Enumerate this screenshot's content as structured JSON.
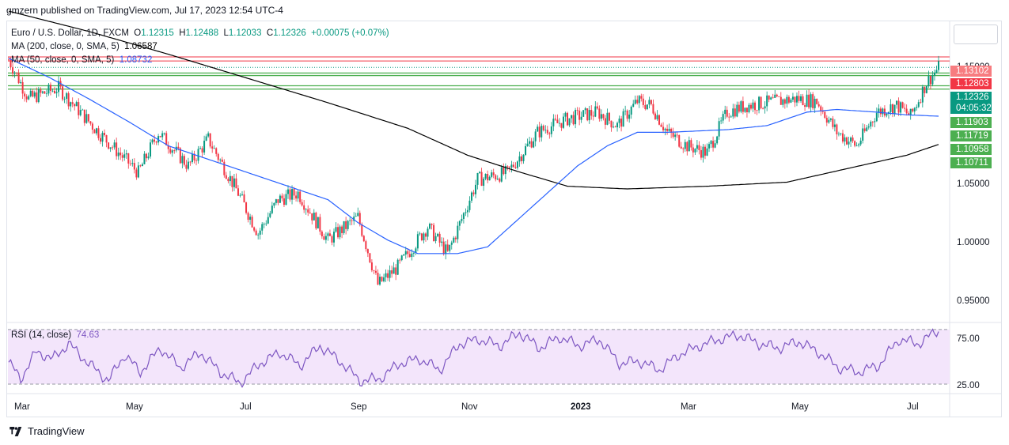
{
  "header": {
    "published": "gmzern published on TradingView.com, Jul 17, 2023 12:54 UTC-4"
  },
  "legend": {
    "symbol": "Euro / U.S. Dollar, 1D, FXCM",
    "o_label": "O",
    "o": "1.12315",
    "h_label": "H",
    "h": "1.12488",
    "l_label": "L",
    "l": "1.12033",
    "c_label": "C",
    "c": "1.12326",
    "change": "+0.00075 (+0.07%)",
    "ma200_label": "MA (200, close, 0, SMA, 5)",
    "ma200": "1.06587",
    "ma50_label": "MA (50, close, 0, SMA, 5)",
    "ma50": "1.08732"
  },
  "rsi": {
    "label": "RSI (14, close)",
    "value": "74.63"
  },
  "price_axis": {
    "ticks": [
      "1.15000",
      "1.05000",
      "1.00000",
      "0.95000"
    ],
    "boxes": [
      {
        "text": "1.13102",
        "color": "#f77c80"
      },
      {
        "text": "1.12803",
        "color": "#f23645"
      },
      {
        "text": "1.12326",
        "color": "#089981"
      },
      {
        "text": "04:05:32",
        "color": "#089981"
      },
      {
        "text": "1.11903",
        "color": "#4caf50"
      },
      {
        "text": "1.11719",
        "color": "#4caf50"
      },
      {
        "text": "1.10958",
        "color": "#4caf50"
      },
      {
        "text": "1.10711",
        "color": "#4caf50"
      }
    ]
  },
  "rsi_axis": {
    "ticks": [
      "75.00",
      "25.00"
    ]
  },
  "time_axis": [
    "Mar",
    "May",
    "Jul",
    "Sep",
    "Nov",
    "2023",
    "Mar",
    "May",
    "Jul"
  ],
  "footer": {
    "brand": "TradingView"
  },
  "colors": {
    "up": "#089981",
    "down": "#f23645",
    "ma50": "#2962ff",
    "ma200": "#000000",
    "rsi_line": "#7e57c2",
    "rsi_fill": "#f3e5fb",
    "resistance": "#f23645",
    "support": "#4caf50"
  },
  "chart_data": {
    "type": "candlestick",
    "price_range": [
      0.935,
      1.158
    ],
    "rsi_range": [
      17,
      80
    ],
    "resistance_levels": [
      1.13102,
      1.12803
    ],
    "support_levels": [
      1.11903,
      1.11719,
      1.10958,
      1.10711
    ],
    "close_waypoints": [
      [
        0,
        1.129
      ],
      [
        10,
        1.1
      ],
      [
        25,
        1.108
      ],
      [
        45,
        1.075
      ],
      [
        65,
        1.045
      ],
      [
        75,
        1.075
      ],
      [
        90,
        1.05
      ],
      [
        100,
        1.07
      ],
      [
        115,
        1.03
      ],
      [
        125,
        1.0
      ],
      [
        135,
        1.025
      ],
      [
        145,
        1.03
      ],
      [
        160,
        0.995
      ],
      [
        175,
        1.012
      ],
      [
        185,
        0.962
      ],
      [
        195,
        0.975
      ],
      [
        210,
        1.005
      ],
      [
        220,
        0.985
      ],
      [
        235,
        1.04
      ],
      [
        250,
        1.045
      ],
      [
        265,
        1.075
      ],
      [
        280,
        1.085
      ],
      [
        295,
        1.09
      ],
      [
        305,
        1.08
      ],
      [
        315,
        1.098
      ],
      [
        322,
        1.095
      ],
      [
        330,
        1.075
      ],
      [
        340,
        1.065
      ],
      [
        350,
        1.06
      ],
      [
        360,
        1.09
      ],
      [
        370,
        1.095
      ],
      [
        385,
        1.098
      ],
      [
        395,
        1.1
      ],
      [
        405,
        1.098
      ],
      [
        415,
        1.075
      ],
      [
        425,
        1.065
      ],
      [
        435,
        1.09
      ],
      [
        445,
        1.095
      ],
      [
        452,
        1.087
      ],
      [
        460,
        1.112
      ],
      [
        466,
        1.123
      ]
    ],
    "ma50_waypoints": [
      [
        0,
        1.13
      ],
      [
        20,
        1.116
      ],
      [
        40,
        1.1
      ],
      [
        60,
        1.083
      ],
      [
        80,
        1.065
      ],
      [
        100,
        1.055
      ],
      [
        120,
        1.045
      ],
      [
        140,
        1.035
      ],
      [
        160,
        1.025
      ],
      [
        175,
        1.008
      ],
      [
        190,
        0.995
      ],
      [
        205,
        0.985
      ],
      [
        225,
        0.985
      ],
      [
        240,
        0.99
      ],
      [
        255,
        1.01
      ],
      [
        270,
        1.03
      ],
      [
        285,
        1.05
      ],
      [
        300,
        1.065
      ],
      [
        315,
        1.075
      ],
      [
        330,
        1.075
      ],
      [
        345,
        1.076
      ],
      [
        360,
        1.077
      ],
      [
        380,
        1.08
      ],
      [
        400,
        1.09
      ],
      [
        415,
        1.092
      ],
      [
        435,
        1.09
      ],
      [
        450,
        1.088
      ],
      [
        466,
        1.087
      ]
    ],
    "ma200_waypoints": [
      [
        0,
        1.165
      ],
      [
        40,
        1.15
      ],
      [
        80,
        1.133
      ],
      [
        120,
        1.115
      ],
      [
        160,
        1.097
      ],
      [
        200,
        1.078
      ],
      [
        230,
        1.058
      ],
      [
        255,
        1.046
      ],
      [
        280,
        1.035
      ],
      [
        310,
        1.033
      ],
      [
        350,
        1.035
      ],
      [
        390,
        1.038
      ],
      [
        420,
        1.048
      ],
      [
        450,
        1.058
      ],
      [
        466,
        1.066
      ]
    ],
    "rsi_waypoints": [
      [
        0,
        45
      ],
      [
        6,
        30
      ],
      [
        14,
        55
      ],
      [
        22,
        48
      ],
      [
        30,
        62
      ],
      [
        40,
        44
      ],
      [
        50,
        28
      ],
      [
        58,
        52
      ],
      [
        66,
        36
      ],
      [
        76,
        58
      ],
      [
        86,
        40
      ],
      [
        96,
        54
      ],
      [
        106,
        36
      ],
      [
        116,
        26
      ],
      [
        126,
        44
      ],
      [
        136,
        54
      ],
      [
        146,
        42
      ],
      [
        156,
        60
      ],
      [
        166,
        46
      ],
      [
        176,
        28
      ],
      [
        186,
        30
      ],
      [
        196,
        44
      ],
      [
        206,
        48
      ],
      [
        216,
        38
      ],
      [
        226,
        62
      ],
      [
        236,
        66
      ],
      [
        246,
        60
      ],
      [
        256,
        72
      ],
      [
        266,
        58
      ],
      [
        276,
        68
      ],
      [
        286,
        60
      ],
      [
        296,
        66
      ],
      [
        306,
        44
      ],
      [
        316,
        46
      ],
      [
        326,
        38
      ],
      [
        336,
        52
      ],
      [
        346,
        60
      ],
      [
        356,
        66
      ],
      [
        366,
        70
      ],
      [
        376,
        62
      ],
      [
        386,
        58
      ],
      [
        396,
        64
      ],
      [
        406,
        54
      ],
      [
        416,
        40
      ],
      [
        426,
        36
      ],
      [
        436,
        42
      ],
      [
        446,
        66
      ],
      [
        456,
        62
      ],
      [
        466,
        74.63
      ]
    ]
  }
}
